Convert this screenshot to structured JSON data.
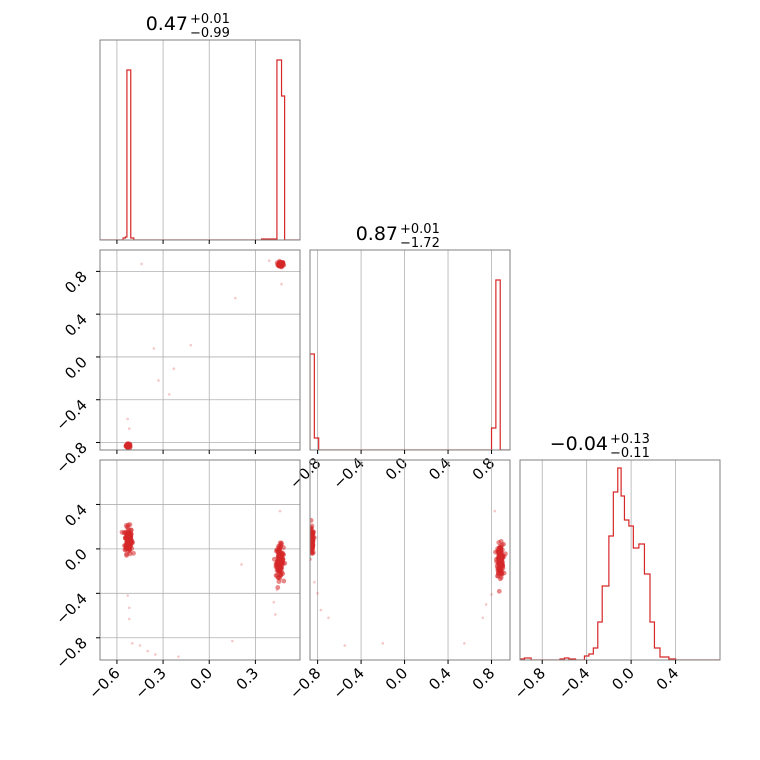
{
  "colors": {
    "series": "#d62728",
    "grid": "#b0b0b0",
    "frame": "#808080"
  },
  "chart_data": {
    "type": "corner",
    "grid": true,
    "panels": [
      {
        "kind": "hist",
        "row": 0,
        "col": 0,
        "title": {
          "main": "0.47",
          "sup": "+0.01",
          "sub": "−0.99"
        },
        "xlim": [
          -0.71,
          0.59
        ],
        "xticks": [
          -0.6,
          -0.3,
          0.0,
          0.3
        ],
        "bins": [
          [
            -0.71,
            0
          ],
          [
            -0.56,
            0.01
          ],
          [
            -0.545,
            0.015
          ],
          [
            -0.535,
            0.85
          ],
          [
            -0.51,
            0.01
          ],
          [
            -0.49,
            0
          ],
          [
            0.34,
            0.005
          ],
          [
            0.38,
            0.005
          ],
          [
            0.42,
            0.005
          ],
          [
            0.44,
            0.9
          ],
          [
            0.47,
            0.72
          ],
          [
            0.49,
            0
          ]
        ]
      },
      {
        "kind": "scatter",
        "row": 1,
        "col": 0,
        "xlim": [
          -0.71,
          0.59
        ],
        "ylim": [
          -0.87,
          1.0
        ],
        "xticks": [
          -0.6,
          -0.3,
          0.0,
          0.3
        ],
        "yticks": [
          -0.8,
          -0.4,
          0.0,
          0.4,
          0.8
        ],
        "yticklabels": [
          "−0.8",
          "−0.4",
          "0.0",
          "0.4",
          "0.8"
        ],
        "clusters": [
          {
            "x": -0.525,
            "y": -0.83,
            "sx": 0.008,
            "sy": 0.01,
            "n": 40
          },
          {
            "x": 0.463,
            "y": 0.865,
            "sx": 0.01,
            "sy": 0.012,
            "n": 45
          }
        ],
        "points": [
          [
            -0.44,
            0.87
          ],
          [
            -0.36,
            0.08
          ],
          [
            -0.33,
            -0.22
          ],
          [
            -0.26,
            -0.35
          ],
          [
            -0.23,
            -0.11
          ],
          [
            -0.12,
            0.11
          ],
          [
            0.17,
            0.55
          ],
          [
            -0.53,
            -0.58
          ],
          [
            -0.52,
            -0.67
          ],
          [
            0.39,
            0.9
          ],
          [
            0.47,
            0.68
          ]
        ]
      },
      {
        "kind": "hist",
        "row": 1,
        "col": 1,
        "title": {
          "main": "0.87",
          "sup": "+0.01",
          "sub": "−1.72"
        },
        "xlim": [
          -0.87,
          0.97
        ],
        "xticks": [
          -0.8,
          -0.4,
          0.0,
          0.4,
          0.8
        ],
        "xticklabels": [
          "−0.8",
          "−0.4",
          "0.0",
          "0.4",
          "0.8"
        ],
        "bins": [
          [
            -0.87,
            0.48
          ],
          [
            -0.83,
            0.06
          ],
          [
            -0.79,
            0
          ],
          [
            0.8,
            0.11
          ],
          [
            0.84,
            0.85
          ],
          [
            0.88,
            0
          ]
        ]
      },
      {
        "kind": "scatter",
        "row": 2,
        "col": 0,
        "xlim": [
          -0.71,
          0.59
        ],
        "ylim": [
          -1.0,
          0.8
        ],
        "xticks": [
          -0.6,
          -0.3,
          0.0,
          0.3
        ],
        "xticklabels": [
          "−0.6",
          "−0.3",
          "0.0",
          "0.3"
        ],
        "yticks": [
          -0.8,
          -0.4,
          0.0,
          0.4
        ],
        "yticklabels": [
          "−0.8",
          "−0.4",
          "0.0",
          "0.4"
        ],
        "clusters": [
          {
            "x": -0.525,
            "y": 0.08,
            "sx": 0.012,
            "sy": 0.06,
            "n": 130
          },
          {
            "x": 0.458,
            "y": -0.11,
            "sx": 0.012,
            "sy": 0.07,
            "n": 130
          }
        ],
        "points": [
          [
            -0.53,
            -0.42
          ],
          [
            -0.52,
            -0.53
          ],
          [
            -0.52,
            -0.63
          ],
          [
            -0.5,
            -0.85
          ],
          [
            -0.45,
            -0.87
          ],
          [
            -0.4,
            -0.92
          ],
          [
            -0.35,
            -0.95
          ],
          [
            -0.2,
            -0.97
          ],
          [
            0.15,
            -0.83
          ],
          [
            0.21,
            -0.14
          ],
          [
            0.42,
            -0.48
          ],
          [
            0.43,
            -0.59
          ],
          [
            0.44,
            -0.37
          ],
          [
            0.46,
            0.34
          ]
        ]
      },
      {
        "kind": "scatter",
        "row": 2,
        "col": 1,
        "xlim": [
          -0.87,
          0.97
        ],
        "ylim": [
          -1.0,
          0.8
        ],
        "xticks": [
          -0.8,
          -0.4,
          0.0,
          0.4,
          0.8
        ],
        "xticklabels": [
          "−0.8",
          "−0.4",
          "0.0",
          "0.4",
          "0.8"
        ],
        "clusters": [
          {
            "x": -0.855,
            "y": 0.06,
            "sx": 0.01,
            "sy": 0.06,
            "n": 110
          },
          {
            "x": 0.88,
            "y": -0.1,
            "sx": 0.015,
            "sy": 0.07,
            "n": 130
          }
        ],
        "points": [
          [
            -0.83,
            -0.3
          ],
          [
            -0.8,
            -0.4
          ],
          [
            -0.77,
            -0.55
          ],
          [
            -0.7,
            -0.62
          ],
          [
            -0.55,
            -0.87
          ],
          [
            -0.2,
            -0.85
          ],
          [
            0.55,
            -0.85
          ],
          [
            0.72,
            -0.62
          ],
          [
            0.75,
            -0.5
          ],
          [
            0.8,
            -0.41
          ],
          [
            0.83,
            0.34
          ]
        ]
      },
      {
        "kind": "hist",
        "row": 2,
        "col": 2,
        "title": {
          "main": "−0.04",
          "sup": "+0.13",
          "sub": "−0.11"
        },
        "xlim": [
          -1.0,
          0.8
        ],
        "xticks": [
          -0.8,
          -0.4,
          0.0,
          0.4
        ],
        "xticklabels": [
          "−0.8",
          "−0.4",
          "0.0",
          "0.4"
        ],
        "bins": [
          [
            -1.0,
            0.005
          ],
          [
            -0.96,
            0.01
          ],
          [
            -0.9,
            0
          ],
          [
            -0.64,
            0.005
          ],
          [
            -0.6,
            0.01
          ],
          [
            -0.56,
            0.005
          ],
          [
            -0.5,
            0
          ],
          [
            -0.42,
            0.02
          ],
          [
            -0.38,
            0.03
          ],
          [
            -0.34,
            0.06
          ],
          [
            -0.3,
            0.19
          ],
          [
            -0.26,
            0.37
          ],
          [
            -0.2,
            0.62
          ],
          [
            -0.16,
            0.84
          ],
          [
            -0.12,
            0.96
          ],
          [
            -0.09,
            0.82
          ],
          [
            -0.06,
            0.7
          ],
          [
            -0.02,
            0.67
          ],
          [
            0.02,
            0.56
          ],
          [
            0.07,
            0.58
          ],
          [
            0.12,
            0.43
          ],
          [
            0.17,
            0.19
          ],
          [
            0.21,
            0.06
          ],
          [
            0.26,
            0.015
          ],
          [
            0.34,
            0.005
          ],
          [
            0.4,
            0
          ]
        ]
      }
    ]
  }
}
